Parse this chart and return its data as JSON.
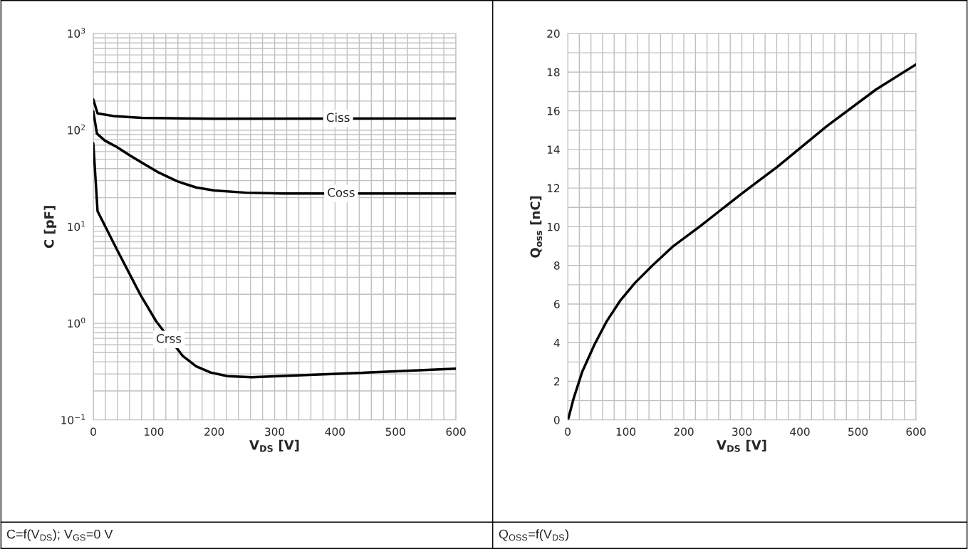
{
  "chart_data": [
    {
      "type": "line",
      "xlabel": "V$_{DS}$ [V]",
      "ylabel": "C [pF]",
      "log": "y",
      "grid": true,
      "xlim": [
        0,
        600
      ],
      "xticks": [
        0,
        100,
        200,
        300,
        400,
        500,
        600
      ],
      "ylim": [
        0.1,
        1000
      ],
      "yticks": [
        {
          "value": 0.1,
          "label": "10$^{−1}$"
        },
        {
          "value": 1,
          "label": "10$^{0}$"
        },
        {
          "value": 10,
          "label": "10$^{1}$"
        },
        {
          "value": 100,
          "label": "10$^{2}$"
        },
        {
          "value": 1000,
          "label": "10$^{3}$"
        }
      ],
      "series": [
        {
          "color": "#000000",
          "x": [
            0,
            7,
            33,
            80,
            200,
            600
          ],
          "values": [
            207,
            149,
            140,
            134,
            131,
            132
          ]
        },
        {
          "color": "#000000",
          "x": [
            0,
            6,
            19,
            38.5,
            60,
            78,
            106,
            139,
            170,
            200,
            253,
            314,
            600
          ],
          "values": [
            156,
            92,
            78,
            67,
            55,
            47,
            37,
            29.5,
            25.5,
            23.7,
            22.5,
            22.1,
            22.1
          ]
        },
        {
          "color": "#000000",
          "x": [
            0,
            7,
            38.5,
            78,
            104,
            148,
            170,
            194,
            222,
            262,
            402,
            600
          ],
          "values": [
            73,
            14.5,
            5.9,
            1.97,
            1.05,
            0.46,
            0.36,
            0.31,
            0.284,
            0.277,
            0.3,
            0.34
          ]
        }
      ],
      "annotations": [
        {
          "text": "Ciss",
          "x": 405,
          "y": 132
        },
        {
          "text": "Coss",
          "x": 410,
          "y": 22.1
        },
        {
          "text": "Crss",
          "x": 125,
          "y": 0.68
        },
        "C=f(V$_{DS}$); V$_{GS}$=0 V"
      ]
    },
    {
      "type": "line",
      "xlabel": "V$_{DS}$ [V]",
      "ylabel": "Q$_{oss}$ [nC]",
      "grid": true,
      "xlim": [
        0,
        600
      ],
      "xticks": [
        0,
        100,
        200,
        300,
        400,
        500,
        600
      ],
      "ylim": [
        0,
        20
      ],
      "yticks": [
        0,
        2,
        4,
        6,
        8,
        10,
        12,
        14,
        16,
        18,
        20
      ],
      "series": [
        {
          "color": "#000000",
          "x": [
            1,
            10,
            25,
            46,
            67,
            91,
            116,
            146,
            182,
            229,
            299,
            361,
            446,
            531,
            600
          ],
          "values": [
            0.07,
            1.1,
            2.5,
            3.9,
            5.1,
            6.2,
            7.1,
            8.0,
            9.0,
            10.05,
            11.7,
            13.1,
            15.2,
            17.1,
            18.4
          ]
        }
      ],
      "annotations": [
        "Q$_{OSS}$=f(V$_{DS}$)"
      ]
    }
  ]
}
